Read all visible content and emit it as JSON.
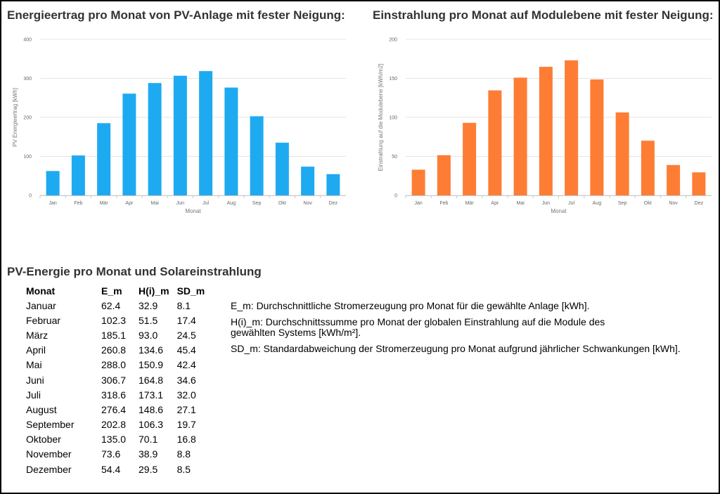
{
  "charts": {
    "left_title": "Energieertrag pro Monat von PV-Anlage mit fester Neigung:",
    "right_title": "Einstrahlung pro Monat auf Modulebene mit fester Neigung:"
  },
  "chart_data": [
    {
      "type": "bar",
      "title": "Energieertrag pro Monat von PV-Anlage mit fester Neigung:",
      "categories": [
        "Jan",
        "Feb",
        "Mär",
        "Apr",
        "Mai",
        "Jun",
        "Jul",
        "Aug",
        "Sep",
        "Okt",
        "Nov",
        "Dez"
      ],
      "values": [
        62.4,
        102.3,
        185.1,
        260.8,
        288.0,
        306.7,
        318.6,
        276.4,
        202.8,
        135.0,
        73.6,
        54.4
      ],
      "xlabel": "Monat",
      "ylabel": "PV Energieertrag [kWh]",
      "ylim": [
        0,
        400
      ],
      "yticks": [
        0,
        100,
        200,
        300,
        400
      ],
      "grid": true,
      "color": "#1eaaf1"
    },
    {
      "type": "bar",
      "title": "Einstrahlung pro Monat auf Modulebene mit fester Neigung:",
      "categories": [
        "Jan",
        "Feb",
        "Mär",
        "Apr",
        "Mai",
        "Jun",
        "Jul",
        "Aug",
        "Sep",
        "Okt",
        "Nov",
        "Dez"
      ],
      "values": [
        32.9,
        51.5,
        93.0,
        134.6,
        150.9,
        164.8,
        173.1,
        148.6,
        106.3,
        70.1,
        38.9,
        29.5
      ],
      "xlabel": "Monat",
      "ylabel": "Einstrahlung auf die Modulebene [kWh/m2]",
      "ylim": [
        0,
        200
      ],
      "yticks": [
        0,
        50,
        100,
        150,
        200
      ],
      "grid": true,
      "color": "#fe7d35"
    }
  ],
  "section_title": "PV-Energie pro Monat und Solareinstrahlung",
  "table": {
    "headers": [
      "Monat",
      "E_m",
      "H(i)_m",
      "SD_m"
    ],
    "rows": [
      [
        "Januar",
        "62.4",
        "32.9",
        "8.1"
      ],
      [
        "Februar",
        "102.3",
        "51.5",
        "17.4"
      ],
      [
        "März",
        "185.1",
        "93.0",
        "24.5"
      ],
      [
        "April",
        "260.8",
        "134.6",
        "45.4"
      ],
      [
        "Mai",
        "288.0",
        "150.9",
        "42.4"
      ],
      [
        "Juni",
        "306.7",
        "164.8",
        "34.6"
      ],
      [
        "Juli",
        "318.6",
        "173.1",
        "32.0"
      ],
      [
        "August",
        "276.4",
        "148.6",
        "27.1"
      ],
      [
        "September",
        "202.8",
        "106.3",
        "19.7"
      ],
      [
        "Oktober",
        "135.0",
        "70.1",
        "16.8"
      ],
      [
        "November",
        "73.6",
        "38.9",
        "8.8"
      ],
      [
        "Dezember",
        "54.4",
        "29.5",
        "8.5"
      ]
    ]
  },
  "legend": {
    "em": "E_m: Durchschnittliche Stromerzeugung pro Monat für die gewählte Anlage [kWh].",
    "hi": "H(i)_m: Durchschnittssumme pro Monat der globalen Einstrahlung auf die Module des gewählten Systems [kWh/m²].",
    "sd": "SD_m: Standardabweichung der Stromerzeugung pro Monat aufgrund jährlicher Schwankungen [kWh]."
  }
}
